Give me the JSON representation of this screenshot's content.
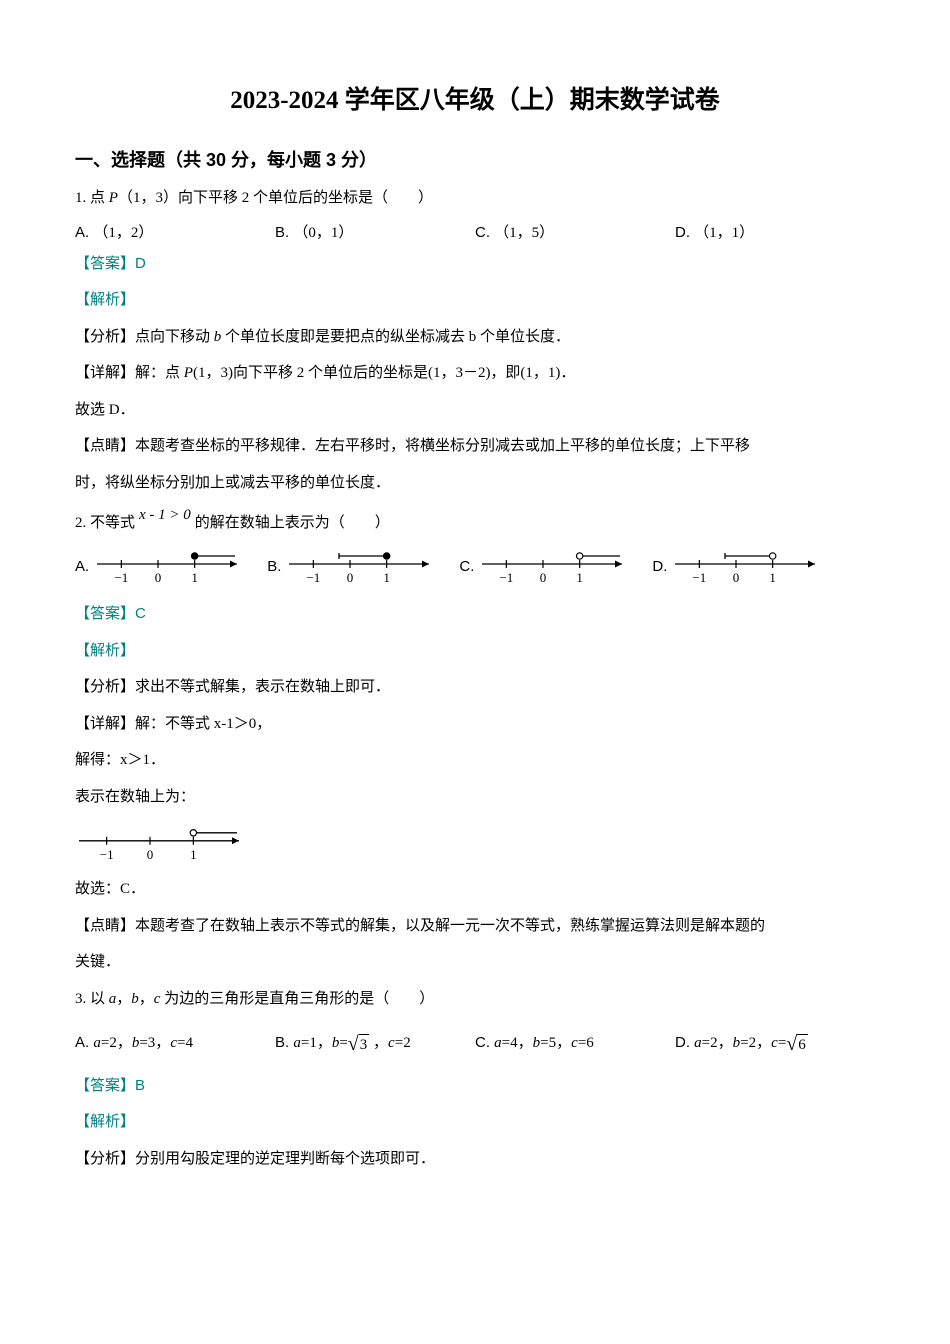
{
  "title": "2023-2024 学年区八年级（上）期末数学试卷",
  "section1": "一、选择题（共 30 分，每小题 3 分）",
  "q1": {
    "stem_prefix": "1. 点 ",
    "stem_var": "P",
    "stem_suffix": "（1，3）向下平移 2 个单位后的坐标是（　　）",
    "optA": "（1，2）",
    "optB": "（0，1）",
    "optC": "（1，5）",
    "optD": "（1，1）",
    "answer_label": "【答案】",
    "answer": "D",
    "analysis_label": "【解析】",
    "fenxi_label": "【分析】",
    "fenxi_prefix": "点向下移动 ",
    "fenxi_var": "b",
    "fenxi_suffix": " 个单位长度即是要把点的纵坐标减去 b 个单位长度．",
    "detail_label": "【详解】",
    "detail_prefix": "解：点 ",
    "detail_var": "P",
    "detail_suffix": "(1，3)向下平移 2 个单位后的坐标是(1，3－2)，即(1，1)．",
    "conclude": "故选 D．",
    "dianjing_label": "【点睛】",
    "dianjing_text1": "本题考查坐标的平移规律．左右平移时，将横坐标分别减去或加上平移的单位长度；上下平移",
    "dianjing_text2": "时，将纵坐标分别加上或减去平移的单位长度．"
  },
  "q2": {
    "stem_prefix": "2. 不等式",
    "math": "x - 1 > 0",
    "stem_suffix": "的解在数轴上表示为（　　）",
    "optA_label": "A.",
    "optB_label": "B.",
    "optC_label": "C.",
    "optD_label": "D.",
    "answer_label": "【答案】",
    "answer": "C",
    "analysis_label": "【解析】",
    "fenxi_label": "【分析】",
    "fenxi_text": "求出不等式解集，表示在数轴上即可．",
    "detail_label": "【详解】",
    "detail_text": "解：不等式 x-1＞0，",
    "solve": "解得：x＞1．",
    "shown": "表示在数轴上为：",
    "conclude": "故选：C．",
    "dianjing_label": "【点睛】",
    "dianjing_text1": "本题考查了在数轴上表示不等式的解集，以及解一元一次不等式，熟练掌握运算法则是解本题的",
    "dianjing_text2": "关键．",
    "numline": {
      "ticks": [
        "−1",
        "0",
        "1"
      ],
      "stroke": "#000000",
      "configs": {
        "A": {
          "pointAt": 1,
          "open": false,
          "rayRight": true
        },
        "B": {
          "pointAt": 1,
          "open": false,
          "rayLeft": true,
          "capLeft": true
        },
        "C": {
          "pointAt": 1,
          "open": true,
          "rayRight": true
        },
        "D": {
          "pointAt": 1,
          "open": true,
          "rayLeft": true,
          "capLeft": true
        }
      }
    }
  },
  "q3": {
    "stem_prefix": "3. 以 ",
    "var_a": "a",
    "sep1": "，",
    "var_b": "b",
    "sep2": "，",
    "var_c": "c",
    "stem_suffix": " 为边的三角形是直角三角形的是（　　）",
    "optA": {
      "a": "2",
      "b": "3",
      "c": "4"
    },
    "optB": {
      "a": "1",
      "b_sqrt": "3",
      "c": "2"
    },
    "optC": {
      "a": "4",
      "b": "5",
      "c": "6"
    },
    "optD": {
      "a": "2",
      "b": "2",
      "c_sqrt": "6"
    },
    "answer_label": "【答案】",
    "answer": "B",
    "analysis_label": "【解析】",
    "fenxi_label": "【分析】",
    "fenxi_text": "分别用勾股定理的逆定理判断每个选项即可．"
  },
  "labels": {
    "A": "A. ",
    "B": "B. ",
    "C": "C. ",
    "D": "D. "
  }
}
